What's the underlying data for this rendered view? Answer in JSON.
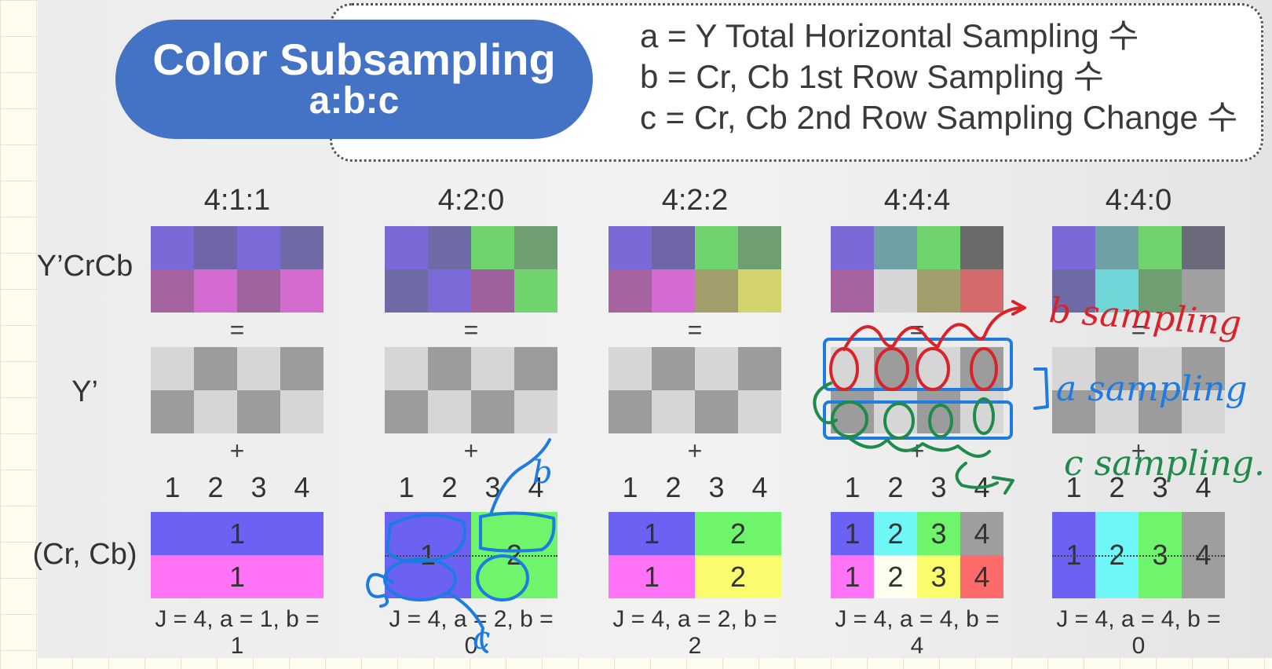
{
  "header": {
    "title_line1": "Color Subsampling",
    "title_line2": "a:b:c",
    "definitions": [
      "a = Y Total Horizontal Sampling 수",
      "b = Cr, Cb 1st Row Sampling 수",
      "c = Cr, Cb 2nd Row Sampling Change 수"
    ]
  },
  "row_labels": {
    "ycrcb": "Y’CrCb",
    "y": "Y’",
    "crcb": "(Cr, Cb)"
  },
  "symbols": {
    "equals": "=",
    "plus": "+"
  },
  "columns": [
    {
      "ratio": "4:1:1",
      "ycrcb_colors": [
        "#7b69d8",
        "#6e66a9",
        "#7b6bd8",
        "#706aa6",
        "#a5639f",
        "#d36bd0",
        "#9f649e",
        "#d46ccf"
      ],
      "y_cells": [
        "#d6d6d6",
        "#9c9c9c",
        "#d6d6d6",
        "#9c9c9c",
        "#9c9c9c",
        "#d6d6d6",
        "#9c9c9c",
        "#d6d6d6"
      ],
      "numbers": [
        "1",
        "2",
        "3",
        "4"
      ],
      "chroma_cells": [
        {
          "label": "1",
          "color": "#6b62f4",
          "col": 1,
          "row": 1,
          "cs": 4,
          "rs": 1
        },
        {
          "label": "1",
          "color": "#ff73f6",
          "col": 1,
          "row": 2,
          "cs": 4,
          "rs": 1
        }
      ],
      "equation": "J = 4, a = 1, b = 1",
      "dotted": false
    },
    {
      "ratio": "4:2:0",
      "ycrcb_colors": [
        "#7b69d8",
        "#6e6aa6",
        "#6fd36e",
        "#6e9e72",
        "#6e6aa6",
        "#7b6bd8",
        "#a0629e",
        "#6fd36e"
      ],
      "y_cells": [
        "#d6d6d6",
        "#9c9c9c",
        "#d6d6d6",
        "#9c9c9c",
        "#9c9c9c",
        "#d6d6d6",
        "#9c9c9c",
        "#d6d6d6"
      ],
      "numbers": [
        "1",
        "2",
        "3",
        "4"
      ],
      "chroma_cells": [
        {
          "label": "1",
          "color": "#6b62f4",
          "col": 1,
          "row": 1,
          "cs": 2,
          "rs": 2
        },
        {
          "label": "2",
          "color": "#6ff56b",
          "col": 3,
          "row": 1,
          "cs": 2,
          "rs": 2
        }
      ],
      "equation": "J = 4, a = 2, b = 0",
      "dotted": true
    },
    {
      "ratio": "4:2:2",
      "ycrcb_colors": [
        "#7b69d8",
        "#6e66a9",
        "#6fd36e",
        "#6e9e72",
        "#a5639f",
        "#d36bd0",
        "#a29e6c",
        "#d3d36e"
      ],
      "y_cells": [
        "#d6d6d6",
        "#9c9c9c",
        "#d6d6d6",
        "#9c9c9c",
        "#9c9c9c",
        "#d6d6d6",
        "#9c9c9c",
        "#d6d6d6"
      ],
      "numbers": [
        "1",
        "2",
        "3",
        "4"
      ],
      "chroma_cells": [
        {
          "label": "1",
          "color": "#6b62f4",
          "col": 1,
          "row": 1,
          "cs": 2,
          "rs": 1
        },
        {
          "label": "2",
          "color": "#6ff56b",
          "col": 3,
          "row": 1,
          "cs": 2,
          "rs": 1
        },
        {
          "label": "1",
          "color": "#ff73f6",
          "col": 1,
          "row": 2,
          "cs": 2,
          "rs": 1
        },
        {
          "label": "2",
          "color": "#fbfb6e",
          "col": 3,
          "row": 2,
          "cs": 2,
          "rs": 1
        }
      ],
      "equation": "J = 4, a = 2, b = 2",
      "dotted": false
    },
    {
      "ratio": "4:4:4",
      "ycrcb_colors": [
        "#7b69d8",
        "#6ea0a6",
        "#6fd36e",
        "#6a6a6a",
        "#a5639f",
        "#d6d6d6",
        "#a29e6c",
        "#d46a6a"
      ],
      "y_cells": [
        "#d6d6d6",
        "#9c9c9c",
        "#d6d6d6",
        "#9c9c9c",
        "#9c9c9c",
        "#d6d6d6",
        "#9c9c9c",
        "#d6d6d6"
      ],
      "numbers": [
        "1",
        "2",
        "3",
        "4"
      ],
      "chroma_cells": [
        {
          "label": "1",
          "color": "#6b62f4",
          "col": 1,
          "row": 1,
          "cs": 1,
          "rs": 1
        },
        {
          "label": "2",
          "color": "#6ff7f7",
          "col": 2,
          "row": 1,
          "cs": 1,
          "rs": 1
        },
        {
          "label": "3",
          "color": "#6ff56b",
          "col": 3,
          "row": 1,
          "cs": 1,
          "rs": 1
        },
        {
          "label": "4",
          "color": "#9e9e9e",
          "col": 4,
          "row": 1,
          "cs": 1,
          "rs": 1
        },
        {
          "label": "1",
          "color": "#ff73f6",
          "col": 1,
          "row": 2,
          "cs": 1,
          "rs": 1
        },
        {
          "label": "2",
          "color": "#fffff0",
          "col": 2,
          "row": 2,
          "cs": 1,
          "rs": 1
        },
        {
          "label": "3",
          "color": "#fbfb6e",
          "col": 3,
          "row": 2,
          "cs": 1,
          "rs": 1
        },
        {
          "label": "4",
          "color": "#ff6b6b",
          "col": 4,
          "row": 2,
          "cs": 1,
          "rs": 1
        }
      ],
      "equation": "J = 4, a = 4, b = 4",
      "dotted": false
    },
    {
      "ratio": "4:4:0",
      "ycrcb_colors": [
        "#7b69d8",
        "#6ea0a6",
        "#6fd36e",
        "#6a6a7a",
        "#6e6aa6",
        "#6ed6d6",
        "#6e9e72",
        "#a0a0a0"
      ],
      "y_cells": [
        "#d6d6d6",
        "#9c9c9c",
        "#d6d6d6",
        "#9c9c9c",
        "#9c9c9c",
        "#d6d6d6",
        "#9c9c9c",
        "#d6d6d6"
      ],
      "numbers": [
        "1",
        "2",
        "3",
        "4"
      ],
      "chroma_cells": [
        {
          "label": "1",
          "color": "#6b62f4",
          "col": 1,
          "row": 1,
          "cs": 1,
          "rs": 2
        },
        {
          "label": "2",
          "color": "#6ff7f7",
          "col": 2,
          "row": 1,
          "cs": 1,
          "rs": 2
        },
        {
          "label": "3",
          "color": "#6ff56b",
          "col": 3,
          "row": 1,
          "cs": 1,
          "rs": 2
        },
        {
          "label": "4",
          "color": "#9e9e9e",
          "col": 4,
          "row": 1,
          "cs": 1,
          "rs": 2
        }
      ],
      "equation": "J = 4, a = 4, b = 0",
      "dotted": true
    }
  ],
  "annotations": {
    "b_sampling": "b sampling",
    "a_sampling": "a sampling",
    "c_sampling": "c sampling.",
    "c_letter": "c",
    "b_letter": "b",
    "color_red": "#d8232a",
    "color_blue": "#1e7be0",
    "color_green": "#1f8a4a"
  }
}
